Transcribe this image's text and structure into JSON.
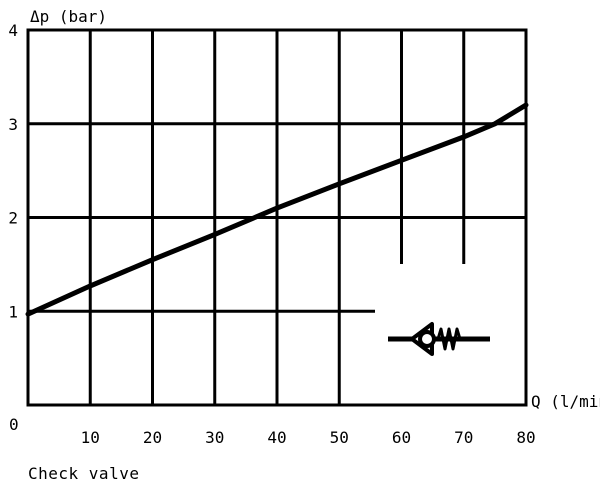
{
  "chart_data": {
    "type": "line",
    "title": "",
    "ylabel": "Δp (bar)",
    "xlabel": "Q (l/min)",
    "xlim": [
      0,
      80
    ],
    "ylim": [
      0,
      4
    ],
    "x_ticks": [
      10,
      20,
      30,
      40,
      50,
      60,
      70,
      80
    ],
    "y_ticks": [
      1,
      2,
      3,
      4
    ],
    "origin_label": "0",
    "grid": true,
    "series": [
      {
        "x": [
          0,
          10,
          20,
          30,
          40,
          50,
          60,
          70,
          75,
          80
        ],
        "y": [
          0.97,
          1.27,
          1.55,
          1.82,
          2.1,
          2.36,
          2.61,
          2.86,
          3.0,
          3.2
        ]
      }
    ],
    "symbol": "check-valve"
  },
  "caption": "Check valve",
  "colors": {
    "line": "#000000",
    "background": "#ffffff"
  }
}
